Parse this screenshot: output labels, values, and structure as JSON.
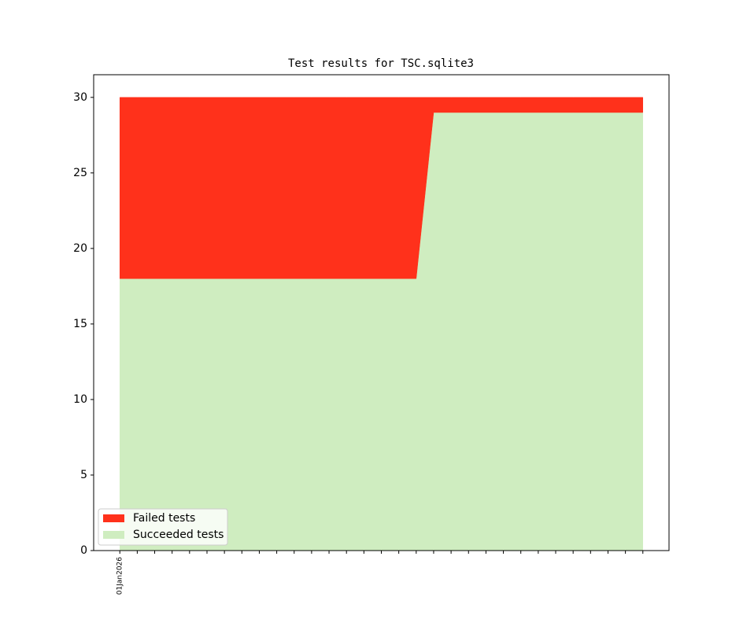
{
  "chart_data": {
    "type": "stacked-area",
    "title": "Test results for TSC.sqlite3",
    "categories": [
      "01Jan2026",
      null,
      null,
      null,
      null,
      null,
      null,
      null,
      null,
      null,
      null,
      null,
      null,
      null,
      null,
      null,
      null,
      null,
      null,
      null,
      null,
      null,
      null,
      null,
      null,
      null,
      null,
      null,
      null,
      null,
      null
    ],
    "series": [
      {
        "name": "Succeeded tests",
        "color": "#cfedc0",
        "values": [
          18,
          18,
          18,
          18,
          18,
          18,
          18,
          18,
          18,
          18,
          18,
          18,
          18,
          18,
          18,
          18,
          18,
          18,
          29,
          29,
          29,
          29,
          29,
          29,
          29,
          29,
          29,
          29,
          29,
          29,
          29
        ]
      },
      {
        "name": "Failed tests",
        "color": "#ff311b",
        "values": [
          12,
          12,
          12,
          12,
          12,
          12,
          12,
          12,
          12,
          12,
          12,
          12,
          12,
          12,
          12,
          12,
          12,
          12,
          1,
          1,
          1,
          1,
          1,
          1,
          1,
          1,
          1,
          1,
          1,
          1,
          1
        ]
      }
    ],
    "ylim": [
      0,
      31.5
    ],
    "yticks": [
      0,
      5,
      10,
      15,
      20,
      25,
      30
    ],
    "grid": false,
    "legend": "lower left"
  }
}
